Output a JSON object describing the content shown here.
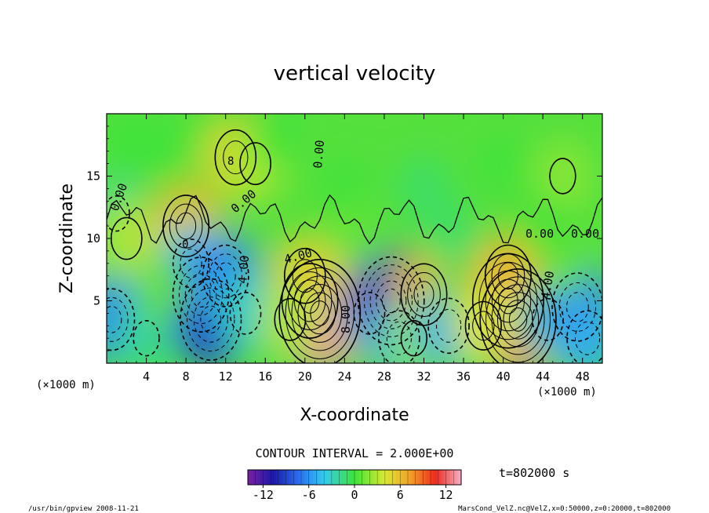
{
  "chart_data": {
    "type": "heatmap",
    "title": "vertical velocity",
    "xlabel": "X-coordinate",
    "ylabel": "Z-coordinate",
    "x_unit": "(×1000 m)",
    "y_unit": "(×1000 m)",
    "xlim": [
      0,
      50
    ],
    "ylim": [
      0,
      20
    ],
    "x_ticks": [
      4,
      8,
      12,
      16,
      20,
      24,
      28,
      32,
      36,
      40,
      44,
      48
    ],
    "y_ticks": [
      5,
      10,
      15
    ],
    "contour_interval_text": "CONTOUR INTERVAL = 2.000E+00",
    "contour_labels": [
      "0.00",
      "0.00",
      "0.00",
      "0.00",
      "0.00",
      "4.00",
      "4.00",
      "4.00",
      "8.00",
      "8",
      "0"
    ],
    "colorbar": {
      "range": [
        -14,
        14
      ],
      "ticks": [
        -12,
        -6,
        0,
        6,
        12
      ]
    },
    "time_label": "t=802000 s",
    "cells": [
      {
        "x": 2,
        "z": 18,
        "w": 0
      },
      {
        "x": 5,
        "z": 17,
        "w": 0
      },
      {
        "x": 10,
        "z": 18,
        "w": 0
      },
      {
        "x": 13,
        "z": 16.5,
        "w": 5
      },
      {
        "x": 15,
        "z": 16,
        "w": 3
      },
      {
        "x": 17,
        "z": 18,
        "w": 0
      },
      {
        "x": 1,
        "z": 12,
        "w": -2
      },
      {
        "x": 2,
        "z": 10,
        "w": 3
      },
      {
        "x": 8,
        "z": 11,
        "w": 6
      },
      {
        "x": 8.5,
        "z": 8,
        "w": -4
      },
      {
        "x": 9.5,
        "z": 5.5,
        "w": -8
      },
      {
        "x": 10.5,
        "z": 3.5,
        "w": -9
      },
      {
        "x": 12,
        "z": 7,
        "w": -6
      },
      {
        "x": 14,
        "z": 4,
        "w": -3
      },
      {
        "x": 0.5,
        "z": 3.5,
        "w": -6
      },
      {
        "x": 4,
        "z": 2,
        "w": -2
      },
      {
        "x": 5.5,
        "z": 6,
        "w": 1
      },
      {
        "x": 20.5,
        "z": 5,
        "w": 8
      },
      {
        "x": 21.5,
        "z": 4,
        "w": 13
      },
      {
        "x": 20,
        "z": 7,
        "w": 5
      },
      {
        "x": 18.5,
        "z": 3.5,
        "w": 3
      },
      {
        "x": 26.5,
        "z": 4,
        "w": -3
      },
      {
        "x": 28.7,
        "z": 5,
        "w": -10
      },
      {
        "x": 29.5,
        "z": 2,
        "w": -5
      },
      {
        "x": 32,
        "z": 5.5,
        "w": 6
      },
      {
        "x": 31,
        "z": 2,
        "w": 2
      },
      {
        "x": 34.5,
        "z": 3,
        "w": -5
      },
      {
        "x": 36,
        "z": 6,
        "w": 0
      },
      {
        "x": 40.5,
        "z": 5,
        "w": 11
      },
      {
        "x": 41.5,
        "z": 3.5,
        "w": 12
      },
      {
        "x": 40.5,
        "z": 7,
        "w": 6
      },
      {
        "x": 38,
        "z": 3,
        "w": 4
      },
      {
        "x": 44.5,
        "z": 3.5,
        "w": -3
      },
      {
        "x": 47.5,
        "z": 4.5,
        "w": -7
      },
      {
        "x": 48.5,
        "z": 2,
        "w": -5
      },
      {
        "x": 46,
        "z": 8,
        "w": 1
      },
      {
        "x": 24,
        "z": 14,
        "w": 0
      },
      {
        "x": 32,
        "z": 14,
        "w": -1
      },
      {
        "x": 40,
        "z": 16,
        "w": 0
      },
      {
        "x": 46,
        "z": 15,
        "w": 2
      },
      {
        "x": 25,
        "z": 10,
        "w": 1
      },
      {
        "x": 35,
        "z": 10,
        "w": -1
      },
      {
        "x": 44,
        "z": 11,
        "w": 0
      }
    ]
  },
  "footer": {
    "left": "/usr/bin/gpview   2008-11-21",
    "right": "MarsCond_VelZ.nc@VelZ,x=0:50000,z=0:20000,t=802000"
  },
  "colors": {
    "frame": "#000000",
    "background": "#ffffff"
  }
}
